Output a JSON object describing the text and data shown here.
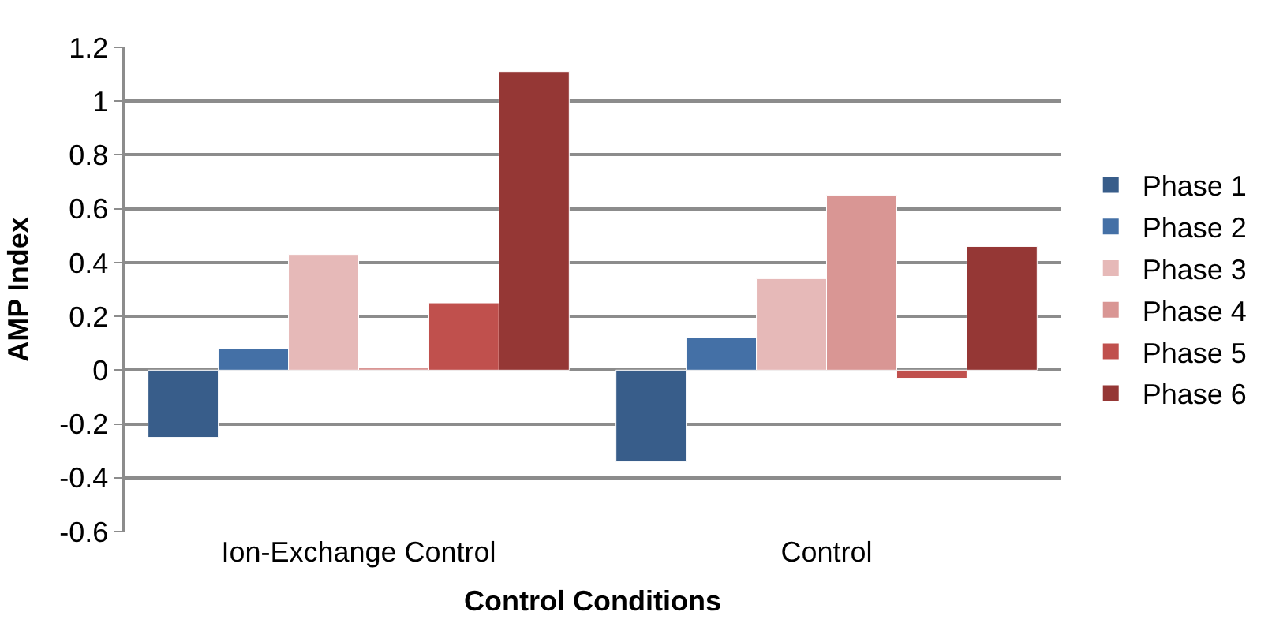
{
  "chart_data": {
    "type": "bar",
    "xlabel": "Control Conditions",
    "ylabel": "AMP Index",
    "categories": [
      "Ion-Exchange Control",
      "Control"
    ],
    "series": [
      {
        "name": "Phase 1",
        "color": "#385d8a",
        "values": [
          -0.25,
          -0.34
        ]
      },
      {
        "name": "Phase 2",
        "color": "#4470a6",
        "values": [
          0.08,
          0.12
        ]
      },
      {
        "name": "Phase 3",
        "color": "#e6b9b8",
        "values": [
          0.43,
          0.34
        ]
      },
      {
        "name": "Phase 4",
        "color": "#d99694",
        "values": [
          0.01,
          0.65
        ]
      },
      {
        "name": "Phase 5",
        "color": "#c0504d",
        "values": [
          0.25,
          -0.03
        ]
      },
      {
        "name": "Phase 6",
        "color": "#953735",
        "values": [
          1.11,
          0.46
        ]
      }
    ],
    "ylim": [
      -0.6,
      1.2
    ],
    "yticks": [
      -0.6,
      -0.4,
      -0.2,
      0,
      0.2,
      0.4,
      0.6,
      0.8,
      1,
      1.2
    ],
    "grid": "y",
    "legend": "right"
  }
}
